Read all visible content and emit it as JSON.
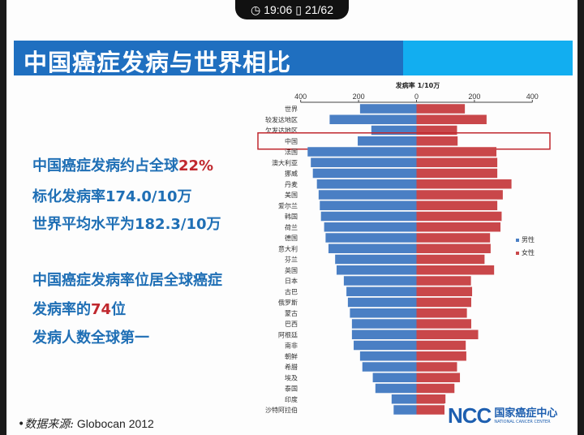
{
  "status_bar": {
    "clock_icon": "clock-icon",
    "time": "19:06",
    "page_icon": "page-icon",
    "page": "21/62"
  },
  "title": "中国癌症发病与世界相比",
  "bullets": [
    {
      "text": "中国癌症发病约占全球",
      "highlight": "22%"
    },
    {
      "text": "标化发病率174.0/10万",
      "highlight": ""
    },
    {
      "text": "世界平均水平为182.3/10万",
      "highlight": ""
    },
    {
      "text": "中国癌症发病率位居全球癌症",
      "highlight": ""
    },
    {
      "text": "发病率的",
      "highlight": "74",
      "suffix": "位"
    },
    {
      "text": "发病人数全球第一",
      "highlight": ""
    }
  ],
  "source": {
    "label": "•数据来源:",
    "value": " Globocan 2012"
  },
  "logo": {
    "mark": "NCC",
    "name_cn": "国家癌症中心",
    "name_en": "NATIONAL CANCER CENTER"
  },
  "colors": {
    "title_dark": "#1f6fc0",
    "title_light": "#12aef0",
    "male": "#4a7fc4",
    "female": "#c9474a",
    "highlight": "#c0282e",
    "text": "#1f6fb5"
  },
  "chart_data": {
    "type": "bar",
    "orientation": "horizontal-diverging",
    "title": "发病率 1/10万",
    "xlim": [
      -400,
      400
    ],
    "ticks": [
      "400",
      "200",
      "0",
      "200",
      "400"
    ],
    "tick_values": [
      -400,
      -200,
      0,
      200,
      400
    ],
    "highlighted_category": "中国",
    "legend_position": "right",
    "categories": [
      "世界",
      "较发达地区",
      "欠发达地区",
      "中国",
      "法国",
      "澳大利亚",
      "挪威",
      "丹麦",
      "美国",
      "爱尔兰",
      "韩国",
      "荷兰",
      "德国",
      "意大利",
      "芬兰",
      "英国",
      "日本",
      "古巴",
      "俄罗斯",
      "蒙古",
      "巴西",
      "阿根廷",
      "南非",
      "朝鲜",
      "希腊",
      "埃及",
      "泰国",
      "印度",
      "沙特阿拉伯"
    ],
    "series": [
      {
        "name": "男性",
        "values": [
          195,
          300,
          156,
          203,
          376,
          365,
          358,
          344,
          338,
          334,
          330,
          319,
          314,
          304,
          281,
          276,
          251,
          242,
          237,
          230,
          223,
          223,
          217,
          195,
          187,
          151,
          142,
          86,
          79
        ]
      },
      {
        "name": "女性",
        "values": [
          167,
          242,
          140,
          142,
          276,
          279,
          279,
          328,
          298,
          279,
          294,
          290,
          254,
          256,
          235,
          268,
          188,
          192,
          189,
          174,
          189,
          213,
          170,
          172,
          140,
          150,
          131,
          100,
          104
        ]
      }
    ]
  }
}
